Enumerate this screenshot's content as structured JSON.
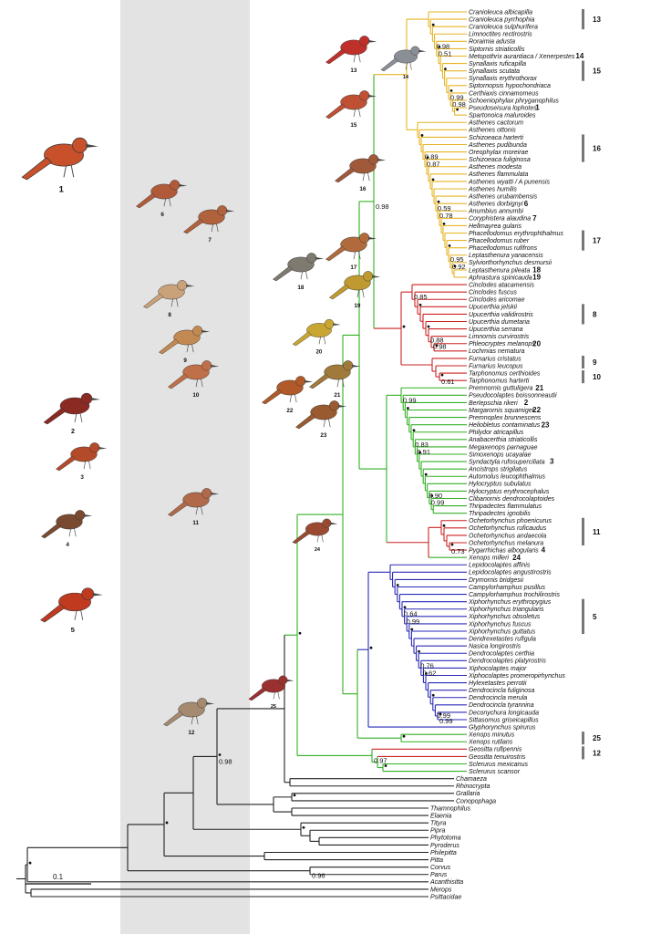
{
  "colors": {
    "yellow": "#e6b422",
    "red": "#cc2222",
    "green": "#33b024",
    "blue": "#2a2ab8",
    "black": "#222222",
    "shade": "#e3e3e3"
  },
  "scale_label": "0.1",
  "taxa": [
    {
      "name": "Cranioleuca albicapilla",
      "c": "yellow"
    },
    {
      "name": "Cranioleuca pyrrhophia",
      "c": "yellow"
    },
    {
      "name": "Cranioleuca sulphurifera",
      "c": "yellow"
    },
    {
      "name": "Limnoctites rectirostris",
      "c": "yellow"
    },
    {
      "name": "Roraimia adusta",
      "c": "yellow"
    },
    {
      "name": "Siptornis striaticollis",
      "c": "yellow"
    },
    {
      "name": "Metopothrix aurantiaca / Xenerpestes",
      "c": "yellow"
    },
    {
      "name": "Synallaxis ruficapilla",
      "c": "yellow"
    },
    {
      "name": "Synallaxis scutata",
      "c": "yellow"
    },
    {
      "name": "Synallaxis erythrothorax",
      "c": "yellow"
    },
    {
      "name": "Siptornopsis hypochondriaca",
      "c": "yellow"
    },
    {
      "name": "Certhiaxis cinnamomeus",
      "c": "yellow"
    },
    {
      "name": "Schoeniophylax phryganophilus",
      "c": "yellow"
    },
    {
      "name": "Pseudoseisura lophotes",
      "c": "yellow"
    },
    {
      "name": "Spartonoica maluroides",
      "c": "yellow"
    },
    {
      "name": "Asthenes cactorum",
      "c": "yellow"
    },
    {
      "name": "Asthenes ottonis",
      "c": "yellow"
    },
    {
      "name": "Schizoeaca harterti",
      "c": "yellow"
    },
    {
      "name": "Asthenes pudibunda",
      "c": "yellow"
    },
    {
      "name": "Oreophylax moreirae",
      "c": "yellow"
    },
    {
      "name": "Schizoeaca fuliginosa",
      "c": "yellow"
    },
    {
      "name": "Asthenes modesta",
      "c": "yellow"
    },
    {
      "name": "Asthenes flammulata",
      "c": "yellow"
    },
    {
      "name": "Asthenes wyatti / A punensis",
      "c": "yellow"
    },
    {
      "name": "Asthenes humilis",
      "c": "yellow"
    },
    {
      "name": "Asthenes urubambensis",
      "c": "yellow"
    },
    {
      "name": "Asthenes dorbignyi",
      "c": "yellow"
    },
    {
      "name": "Anumbius annumbi",
      "c": "yellow"
    },
    {
      "name": "Coryphistera alaudina",
      "c": "yellow"
    },
    {
      "name": "Hellmayrea gularis",
      "c": "yellow"
    },
    {
      "name": "Phacellodomus erythrophthalmus",
      "c": "yellow"
    },
    {
      "name": "Phacellodomus ruber",
      "c": "yellow"
    },
    {
      "name": "Phacellodomus rufifrons",
      "c": "yellow"
    },
    {
      "name": "Leptasthenura yanacensis",
      "c": "yellow"
    },
    {
      "name": "Sylviorthorhynchus desmursii",
      "c": "yellow"
    },
    {
      "name": "Leptasthenura pileata",
      "c": "yellow"
    },
    {
      "name": "Aphrastura spinicauda",
      "c": "yellow"
    },
    {
      "name": "Cinclodes atacamensis",
      "c": "red"
    },
    {
      "name": "Cinclodes fuscus",
      "c": "red"
    },
    {
      "name": "Cinclodes aricomae",
      "c": "red"
    },
    {
      "name": "Upucerthia jelskii",
      "c": "red"
    },
    {
      "name": "Upucerthia validirostris",
      "c": "red"
    },
    {
      "name": "Upucerthia dumetaria",
      "c": "red"
    },
    {
      "name": "Upucerthia serrana",
      "c": "red"
    },
    {
      "name": "Limnornis curvirostris",
      "c": "red"
    },
    {
      "name": "Phleocryptes melanops",
      "c": "red"
    },
    {
      "name": "Lochmias nematura",
      "c": "red"
    },
    {
      "name": "Furnarius cristatus",
      "c": "red"
    },
    {
      "name": "Furnarius leucopus",
      "c": "red"
    },
    {
      "name": "Tarphonomus certhioides",
      "c": "red"
    },
    {
      "name": "Tarphonomus harterti",
      "c": "red"
    },
    {
      "name": "Premnornis guttuligera",
      "c": "green"
    },
    {
      "name": "Pseudocolaptes boissonneautii",
      "c": "green"
    },
    {
      "name": "Berlepschia rikeri",
      "c": "green"
    },
    {
      "name": "Margarornis squamiger",
      "c": "green"
    },
    {
      "name": "Premnoplex brunnescens",
      "c": "green"
    },
    {
      "name": "Heliobletus contaminatus",
      "c": "green"
    },
    {
      "name": "Philydor atricapillus",
      "c": "green"
    },
    {
      "name": "Anabacerthia striaticollis",
      "c": "green"
    },
    {
      "name": "Megaxenops parnaguae",
      "c": "green"
    },
    {
      "name": "Simoxenops ucayalae",
      "c": "green"
    },
    {
      "name": "Syndactyla rufosuperciliata",
      "c": "green"
    },
    {
      "name": "Ancistrops strigilatus",
      "c": "green"
    },
    {
      "name": "Automolus leucophthalmus",
      "c": "green"
    },
    {
      "name": "Hylocryptus subulatus",
      "c": "green"
    },
    {
      "name": "Hylocryptus erythrocephalus",
      "c": "green"
    },
    {
      "name": "Clibanornis dendrocolaptoides",
      "c": "green"
    },
    {
      "name": "Thripadectes flammulatus",
      "c": "green"
    },
    {
      "name": "Thripadectes ignobilis",
      "c": "green"
    },
    {
      "name": "Ochetorhynchus phoenicurus",
      "c": "red"
    },
    {
      "name": "Ochetorhynchus ruficaudus",
      "c": "red"
    },
    {
      "name": "Ochetorhynchus andaecola",
      "c": "red"
    },
    {
      "name": "Ochetorhynchus melanura",
      "c": "red"
    },
    {
      "name": "Pygarrhichas albogularis",
      "c": "red"
    },
    {
      "name": "Xenops milleri",
      "c": "green"
    },
    {
      "name": "Lepidocolaptes affinis",
      "c": "blue"
    },
    {
      "name": "Lepidocolaptes angustirostris",
      "c": "blue"
    },
    {
      "name": "Drymornis bridgesii",
      "c": "blue"
    },
    {
      "name": "Campylorhamphus pusillus",
      "c": "blue"
    },
    {
      "name": "Campylorhamphus trochilirostris",
      "c": "blue"
    },
    {
      "name": "Xiphorhynchus erythropygius",
      "c": "blue"
    },
    {
      "name": "Xiphorhynchus triangularis",
      "c": "blue"
    },
    {
      "name": "Xiphorhynchus obsoletus",
      "c": "blue"
    },
    {
      "name": "Xiphorhynchus fuscus",
      "c": "blue"
    },
    {
      "name": "Xiphorhynchus guttatus",
      "c": "blue"
    },
    {
      "name": "Dendrexetastes rufigula",
      "c": "blue"
    },
    {
      "name": "Nasica longirostris",
      "c": "blue"
    },
    {
      "name": "Dendrocolaptes certhia",
      "c": "blue"
    },
    {
      "name": "Dendrocolaptes platyrostris",
      "c": "blue"
    },
    {
      "name": "Xiphocolaptes major",
      "c": "blue"
    },
    {
      "name": "Xiphocolaptes promeropirhynchus",
      "c": "blue"
    },
    {
      "name": "Hylexetastes perrotii",
      "c": "blue"
    },
    {
      "name": "Dendrocincla fuliginosa",
      "c": "blue"
    },
    {
      "name": "Dendrocincla merula",
      "c": "blue"
    },
    {
      "name": "Dendrocincla tyrannina",
      "c": "blue"
    },
    {
      "name": "Deconychura longicauda",
      "c": "blue"
    },
    {
      "name": "Sittasomus griseicapillus",
      "c": "blue"
    },
    {
      "name": "Glyphorynchus spirurus",
      "c": "blue"
    },
    {
      "name": "Xenops minutus",
      "c": "green"
    },
    {
      "name": "Xenops rutilans",
      "c": "green"
    },
    {
      "name": "Geositta rufipennis",
      "c": "red"
    },
    {
      "name": "Geositta tenuirostris",
      "c": "red"
    },
    {
      "name": "Sclerurus mexicanus",
      "c": "green"
    },
    {
      "name": "Sclerurus scansor",
      "c": "green"
    },
    {
      "name": "Chamaeza",
      "c": "black"
    },
    {
      "name": "Rhinocrypta",
      "c": "black"
    },
    {
      "name": "Grallaria",
      "c": "black"
    },
    {
      "name": "Conopophaga",
      "c": "black"
    },
    {
      "name": "Thamnophilus",
      "c": "black"
    },
    {
      "name": "Elaenia",
      "c": "black"
    },
    {
      "name": "Tityra",
      "c": "black"
    },
    {
      "name": "Pipra",
      "c": "black"
    },
    {
      "name": "Phytotoma",
      "c": "black"
    },
    {
      "name": "Pyroderus",
      "c": "black"
    },
    {
      "name": "Philepitta",
      "c": "black"
    },
    {
      "name": "Pitta",
      "c": "black"
    },
    {
      "name": "Corvus",
      "c": "black"
    },
    {
      "name": "Parus",
      "c": "black"
    },
    {
      "name": "Acanthisitta",
      "c": "black"
    },
    {
      "name": "Merops",
      "c": "black"
    },
    {
      "name": "Psittacidae",
      "c": "black"
    }
  ],
  "bracket_groups": [
    {
      "label": "13",
      "from": 0,
      "to": 2
    },
    {
      "label": "14",
      "from": 6,
      "to": 6
    },
    {
      "label": "15",
      "from": 7,
      "to": 9
    },
    {
      "label": "1",
      "from": 13,
      "to": 13
    },
    {
      "label": "16",
      "from": 17,
      "to": 20
    },
    {
      "label": "6",
      "from": 26,
      "to": 26
    },
    {
      "label": "7",
      "from": 28,
      "to": 28
    },
    {
      "label": "17",
      "from": 30,
      "to": 32
    },
    {
      "label": "18",
      "from": 35,
      "to": 35
    },
    {
      "label": "19",
      "from": 36,
      "to": 36
    },
    {
      "label": "8",
      "from": 40,
      "to": 42
    },
    {
      "label": "20",
      "from": 45,
      "to": 45
    },
    {
      "label": "9",
      "from": 47,
      "to": 48
    },
    {
      "label": "10",
      "from": 49,
      "to": 50
    },
    {
      "label": "21",
      "from": 51,
      "to": 51
    },
    {
      "label": "2",
      "from": 53,
      "to": 53
    },
    {
      "label": "22",
      "from": 54,
      "to": 54
    },
    {
      "label": "23",
      "from": 56,
      "to": 56
    },
    {
      "label": "3",
      "from": 61,
      "to": 61
    },
    {
      "label": "11",
      "from": 69,
      "to": 72
    },
    {
      "label": "4",
      "from": 73,
      "to": 73
    },
    {
      "label": "24",
      "from": 74,
      "to": 74
    },
    {
      "label": "5",
      "from": 80,
      "to": 84
    },
    {
      "label": "25",
      "from": 98,
      "to": 99
    },
    {
      "label": "12",
      "from": 100,
      "to": 101
    }
  ],
  "support_values": [
    "0.99",
    "0.98",
    "0.95",
    "0.59",
    "0.89",
    "0.88",
    "0.61",
    "0.90",
    "0.83",
    "0.73",
    "0.99",
    "0.76",
    "0.64",
    "0.98",
    "0.97",
    "0.98",
    "0.96",
    "0.98",
    "0.51",
    "0.92",
    "0.78",
    "0.87",
    "0.98",
    "0.85",
    "0.99",
    "0.91",
    "0.99",
    "0.99",
    "0.62",
    "0.99"
  ],
  "illustration_labels": [
    "1",
    "6",
    "7",
    "8",
    "9",
    "10",
    "2",
    "3",
    "4",
    "5",
    "11",
    "12",
    "13",
    "14",
    "15",
    "16",
    "17",
    "18",
    "19",
    "20",
    "21",
    "22",
    "23",
    "24",
    "25"
  ]
}
